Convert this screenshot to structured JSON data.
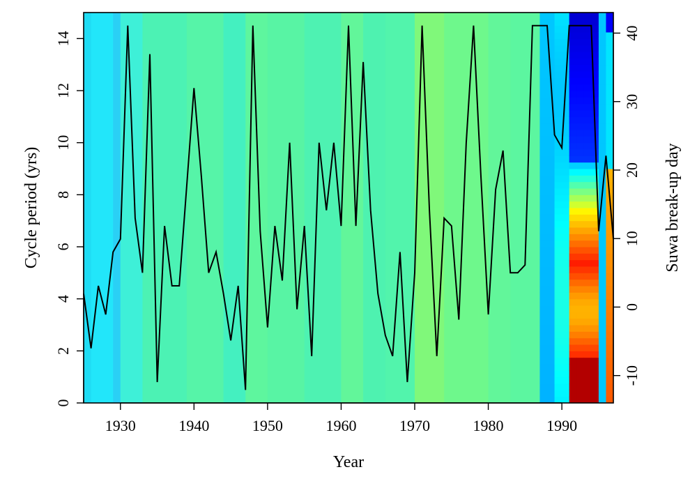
{
  "chart_data": {
    "type": "line",
    "xlabel": "Year",
    "ylabel": "Cycle period (yrs)",
    "y2label": "Suwa break-up day",
    "xlim": [
      1925,
      1997
    ],
    "ylim": [
      0,
      15
    ],
    "y2lim": [
      -14,
      43
    ],
    "x_ticks": [
      1930,
      1940,
      1950,
      1960,
      1970,
      1980,
      1990
    ],
    "y_ticks": [
      0,
      2,
      4,
      6,
      8,
      10,
      12,
      14
    ],
    "y2_ticks": [
      -10,
      0,
      10,
      20,
      30,
      40
    ],
    "background": {
      "type": "heatmap",
      "colormap": "jet",
      "description_bands": [
        {
          "from": 1925,
          "to": 1926,
          "color": "#20dcf4"
        },
        {
          "from": 1926,
          "to": 1929,
          "color": "#22e6fa"
        },
        {
          "from": 1929,
          "to": 1930,
          "color": "#2ad0f5"
        },
        {
          "from": 1930,
          "to": 1933,
          "color": "#3ef0d8"
        },
        {
          "from": 1933,
          "to": 1939,
          "color": "#4cf2b4"
        },
        {
          "from": 1939,
          "to": 1944,
          "color": "#56f4a8"
        },
        {
          "from": 1944,
          "to": 1947,
          "color": "#44f0c0"
        },
        {
          "from": 1947,
          "to": 1950,
          "color": "#5ef69e"
        },
        {
          "from": 1950,
          "to": 1955,
          "color": "#58f4a4"
        },
        {
          "from": 1955,
          "to": 1960,
          "color": "#4ef2b2"
        },
        {
          "from": 1960,
          "to": 1963,
          "color": "#62f69a"
        },
        {
          "from": 1963,
          "to": 1966,
          "color": "#4ef2b0"
        },
        {
          "from": 1966,
          "to": 1970,
          "color": "#52f4ac"
        },
        {
          "from": 1970,
          "to": 1974,
          "color": "#80f87a"
        },
        {
          "from": 1974,
          "to": 1980,
          "color": "#6ef88c"
        },
        {
          "from": 1980,
          "to": 1983,
          "color": "#62f69a"
        },
        {
          "from": 1983,
          "to": 1987,
          "color": "#5cf6a0"
        }
      ]
    },
    "series": [
      {
        "color": "#000000",
        "x": [
          1925,
          1926,
          1927,
          1928,
          1929,
          1930,
          1931,
          1932,
          1933,
          1934,
          1935,
          1936,
          1937,
          1938,
          1939,
          1940,
          1941,
          1942,
          1943,
          1944,
          1945,
          1946,
          1947,
          1948,
          1949,
          1950,
          1951,
          1952,
          1953,
          1954,
          1955,
          1956,
          1957,
          1958,
          1959,
          1960,
          1961,
          1962,
          1963,
          1964,
          1965,
          1966,
          1967,
          1968,
          1969,
          1970,
          1971,
          1972,
          1973,
          1974,
          1975,
          1976,
          1977,
          1978,
          1979,
          1980,
          1981,
          1982,
          1983,
          1984,
          1985,
          1986,
          1987,
          1988,
          1989,
          1990,
          1991,
          1992,
          1993,
          1994,
          1995,
          1996,
          1997
        ],
        "y": [
          4.2,
          2.1,
          4.5,
          3.4,
          5.8,
          6.3,
          14.5,
          7.1,
          5.0,
          13.4,
          0.8,
          6.8,
          4.5,
          4.5,
          8.3,
          12.1,
          8.7,
          5.0,
          5.8,
          4.2,
          2.4,
          4.5,
          0.5,
          14.5,
          6.6,
          2.9,
          6.8,
          4.7,
          10.0,
          3.6,
          6.8,
          1.8,
          10.0,
          7.4,
          10.0,
          6.8,
          14.5,
          6.8,
          13.1,
          7.4,
          4.2,
          2.6,
          1.8,
          5.8,
          0.8,
          5.0,
          14.5,
          7.4,
          1.8,
          7.1,
          6.8,
          3.2,
          10.0,
          14.5,
          8.7,
          3.4,
          8.2,
          9.7,
          5.0,
          5.0,
          5.3,
          14.5,
          14.5,
          14.5,
          10.3,
          9.8,
          14.5,
          14.5,
          14.5,
          14.5,
          6.6,
          9.5,
          6.3
        ]
      }
    ]
  }
}
